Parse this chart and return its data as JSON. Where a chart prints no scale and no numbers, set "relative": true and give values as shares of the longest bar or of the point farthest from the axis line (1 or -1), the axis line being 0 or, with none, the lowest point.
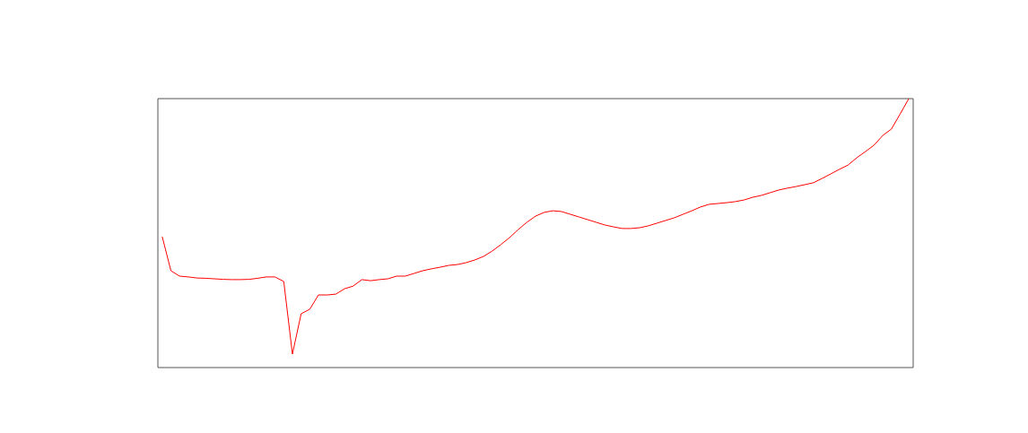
{
  "chart_data": {
    "type": "line",
    "relative": true,
    "categories": [
      null,
      null,
      null,
      null,
      null,
      null,
      null,
      null,
      null,
      null,
      null,
      null,
      null,
      null,
      null,
      null,
      null,
      null,
      null,
      null,
      null,
      null,
      null,
      null,
      null,
      null,
      null,
      null,
      null,
      null,
      null,
      null,
      null,
      null,
      null,
      null,
      null,
      null,
      null,
      null,
      null,
      null,
      null,
      null,
      null,
      null,
      null,
      null,
      null,
      null,
      null,
      null,
      null,
      null,
      null,
      null,
      null,
      null,
      null,
      null,
      null,
      null,
      null,
      null,
      null,
      null,
      null,
      null,
      null,
      null,
      null,
      null,
      null,
      null,
      null,
      null,
      null,
      null,
      null,
      null,
      null,
      null,
      null,
      null,
      null,
      null,
      null
    ],
    "series": [
      {
        "color": "#ff0000",
        "values": [
          0.487,
          0.36,
          0.34,
          0.337,
          0.333,
          0.332,
          0.33,
          0.328,
          0.327,
          0.327,
          0.328,
          0.332,
          0.337,
          0.337,
          0.32,
          0.05,
          0.2,
          0.217,
          0.27,
          0.27,
          0.273,
          0.293,
          0.303,
          0.327,
          0.323,
          0.327,
          0.33,
          0.34,
          0.34,
          0.35,
          0.36,
          0.367,
          0.373,
          0.38,
          0.383,
          0.39,
          0.4,
          0.413,
          0.433,
          0.457,
          0.483,
          0.513,
          0.54,
          0.563,
          0.577,
          0.583,
          0.58,
          0.57,
          0.56,
          0.55,
          0.54,
          0.53,
          0.523,
          0.517,
          0.517,
          0.52,
          0.527,
          0.537,
          0.547,
          0.557,
          0.57,
          0.583,
          0.597,
          0.607,
          0.61,
          0.613,
          0.617,
          0.623,
          0.633,
          0.64,
          0.65,
          0.66,
          0.667,
          0.673,
          0.68,
          0.687,
          0.703,
          0.72,
          0.737,
          0.753,
          0.78,
          0.803,
          0.827,
          0.863,
          0.887,
          0.943,
          1
        ]
      }
    ]
  }
}
